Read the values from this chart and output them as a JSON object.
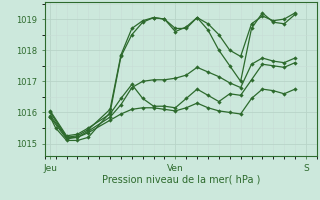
{
  "background_color": "#cce8dc",
  "plot_bg_color": "#cce8dc",
  "line_color": "#2d6a2d",
  "grid_color_major": "#b8d4c8",
  "grid_color_minor": "#c8ddd5",
  "xlabel": "Pression niveau de la mer( hPa )",
  "yticks": [
    1015,
    1016,
    1017,
    1018,
    1019
  ],
  "ylim": [
    1014.6,
    1019.55
  ],
  "xlim": [
    0,
    50
  ],
  "xtick_positions": [
    1,
    24,
    48
  ],
  "xtick_labels": [
    "Jeu",
    "Ven",
    "S"
  ],
  "series": [
    [
      1.0,
      1015.85,
      2.0,
      1015.5,
      4.0,
      1015.1,
      6.0,
      1015.1,
      8.0,
      1015.2,
      12.0,
      1016.0,
      14.0,
      1017.8,
      16.0,
      1018.5,
      18.0,
      1018.9,
      20.0,
      1019.05,
      22.0,
      1019.0,
      24.0,
      1018.6,
      26.0,
      1018.75,
      28.0,
      1019.05,
      30.0,
      1018.85,
      32.0,
      1018.5,
      34.0,
      1018.0,
      36.0,
      1017.8,
      38.0,
      1018.85,
      40.0,
      1019.1,
      42.0,
      1018.95,
      44.0,
      1019.0,
      46.0,
      1019.2
    ],
    [
      1.0,
      1016.0,
      4.0,
      1015.2,
      6.0,
      1015.25,
      8.0,
      1015.45,
      12.0,
      1016.1,
      14.0,
      1017.85,
      16.0,
      1018.7,
      18.0,
      1018.95,
      20.0,
      1019.05,
      22.0,
      1019.0,
      24.0,
      1018.7,
      26.0,
      1018.7,
      28.0,
      1019.05,
      30.0,
      1018.65,
      32.0,
      1018.0,
      34.0,
      1017.5,
      36.0,
      1017.0,
      38.0,
      1018.7,
      40.0,
      1019.2,
      42.0,
      1018.9,
      44.0,
      1018.85,
      46.0,
      1019.15
    ],
    [
      1.0,
      1015.85,
      4.0,
      1015.15,
      6.0,
      1015.2,
      8.0,
      1015.4,
      12.0,
      1015.85,
      14.0,
      1016.25,
      16.0,
      1016.8,
      18.0,
      1017.0,
      20.0,
      1017.05,
      22.0,
      1017.05,
      24.0,
      1017.1,
      26.0,
      1017.2,
      28.0,
      1017.45,
      30.0,
      1017.3,
      32.0,
      1017.15,
      34.0,
      1016.95,
      36.0,
      1016.8,
      38.0,
      1017.55,
      40.0,
      1017.75,
      42.0,
      1017.65,
      44.0,
      1017.6,
      46.0,
      1017.75
    ],
    [
      1.0,
      1016.05,
      4.0,
      1015.25,
      6.0,
      1015.3,
      8.0,
      1015.5,
      12.0,
      1015.95,
      14.0,
      1016.45,
      16.0,
      1016.9,
      18.0,
      1016.45,
      20.0,
      1016.2,
      22.0,
      1016.2,
      24.0,
      1016.15,
      26.0,
      1016.45,
      28.0,
      1016.75,
      30.0,
      1016.55,
      32.0,
      1016.35,
      34.0,
      1016.6,
      36.0,
      1016.55,
      38.0,
      1017.05,
      40.0,
      1017.55,
      42.0,
      1017.5,
      44.0,
      1017.45,
      46.0,
      1017.6
    ],
    [
      1.0,
      1015.9,
      4.0,
      1015.2,
      6.0,
      1015.2,
      8.0,
      1015.35,
      12.0,
      1015.75,
      14.0,
      1015.95,
      16.0,
      1016.1,
      18.0,
      1016.15,
      20.0,
      1016.15,
      22.0,
      1016.1,
      24.0,
      1016.05,
      26.0,
      1016.15,
      28.0,
      1016.3,
      30.0,
      1016.15,
      32.0,
      1016.05,
      34.0,
      1016.0,
      36.0,
      1015.95,
      38.0,
      1016.45,
      40.0,
      1016.75,
      42.0,
      1016.7,
      44.0,
      1016.6,
      46.0,
      1016.75
    ]
  ]
}
